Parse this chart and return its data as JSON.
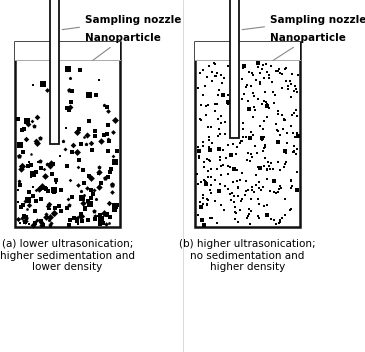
{
  "background_color": "#ffffff",
  "label_sampling_nozzle": "Sampling nozzle",
  "label_nanoparticle": "Nanoparticle",
  "caption_a": "(a) lower ultrasonication;\nhigher sedimentation and\nlower density",
  "caption_b": "(b) higher ultrasonication;\nno sedimentation and\nhigher density",
  "container_color": "#111111",
  "nozzle_color": "#111111",
  "label_fontsize": 7.5,
  "caption_fontsize": 7.5
}
